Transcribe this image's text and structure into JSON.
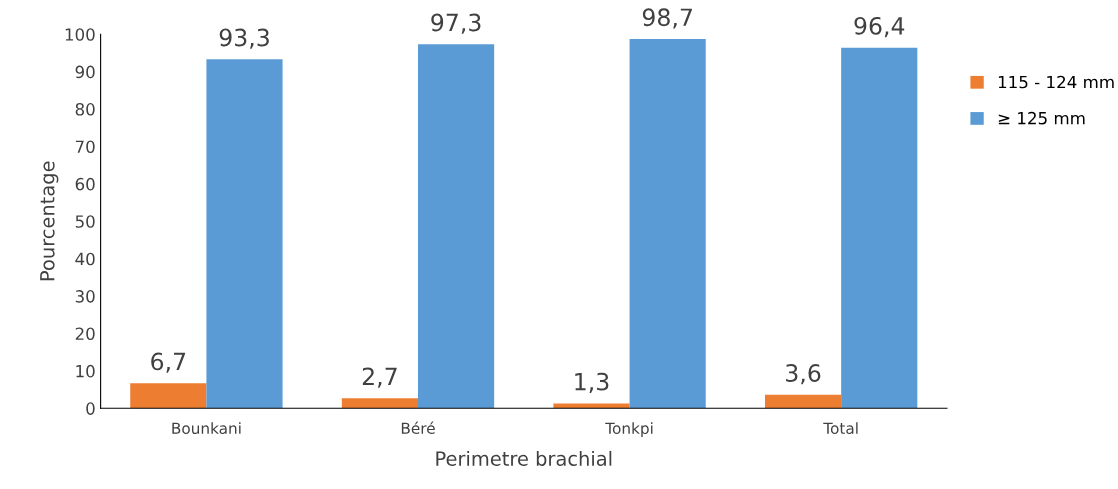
{
  "chart_data": {
    "type": "bar",
    "xlabel": "Perimetre brachial",
    "ylabel": "Pourcentage",
    "categories": [
      "Bounkani",
      "Béré",
      "Tonkpi",
      "Total"
    ],
    "series": [
      {
        "name": "115 - 124 mm",
        "color": "#ed7d31",
        "values": [
          6.7,
          2.7,
          1.3,
          3.6
        ],
        "value_labels": [
          "6,7",
          "2,7",
          "1,3",
          "3,6"
        ]
      },
      {
        "name": "≥ 125 mm",
        "color": "#5b9bd5",
        "values": [
          93.3,
          97.3,
          98.7,
          96.4
        ],
        "value_labels": [
          "93,3",
          "97,3",
          "98,7",
          "96,4"
        ]
      }
    ],
    "ylim": [
      0,
      100
    ],
    "yticks": [
      0,
      10,
      20,
      30,
      40,
      50,
      60,
      70,
      80,
      90,
      100
    ],
    "grid": false,
    "legend": "right"
  }
}
